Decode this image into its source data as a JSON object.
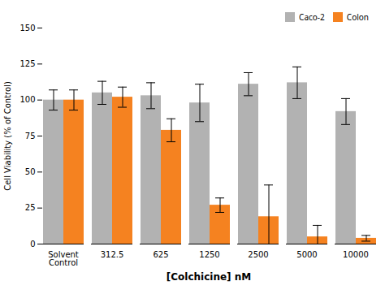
{
  "chart_data": {
    "type": "bar",
    "categories": [
      "Solvent\nControl",
      "312.5",
      "625",
      "1250",
      "2500",
      "5000",
      "10000"
    ],
    "series": [
      {
        "name": "Caco-2",
        "color": "#b2b2b2",
        "values": [
          100,
          105,
          103,
          98,
          111,
          112,
          92
        ],
        "errors": [
          7,
          8,
          9,
          13,
          8,
          11,
          9
        ]
      },
      {
        "name": "Colon",
        "color": "#f58220",
        "values": [
          100,
          102,
          79,
          27,
          19,
          5,
          4
        ],
        "errors": [
          7,
          7,
          8,
          5,
          22,
          8,
          2
        ]
      }
    ],
    "xlabel": "[Colchicine] nM",
    "ylabel": "Cell Viability (% of Control)",
    "ylim": [
      0,
      150
    ],
    "yticks": [
      0,
      25,
      50,
      75,
      100,
      125,
      150
    ],
    "legend": "upper right",
    "grid": false
  }
}
